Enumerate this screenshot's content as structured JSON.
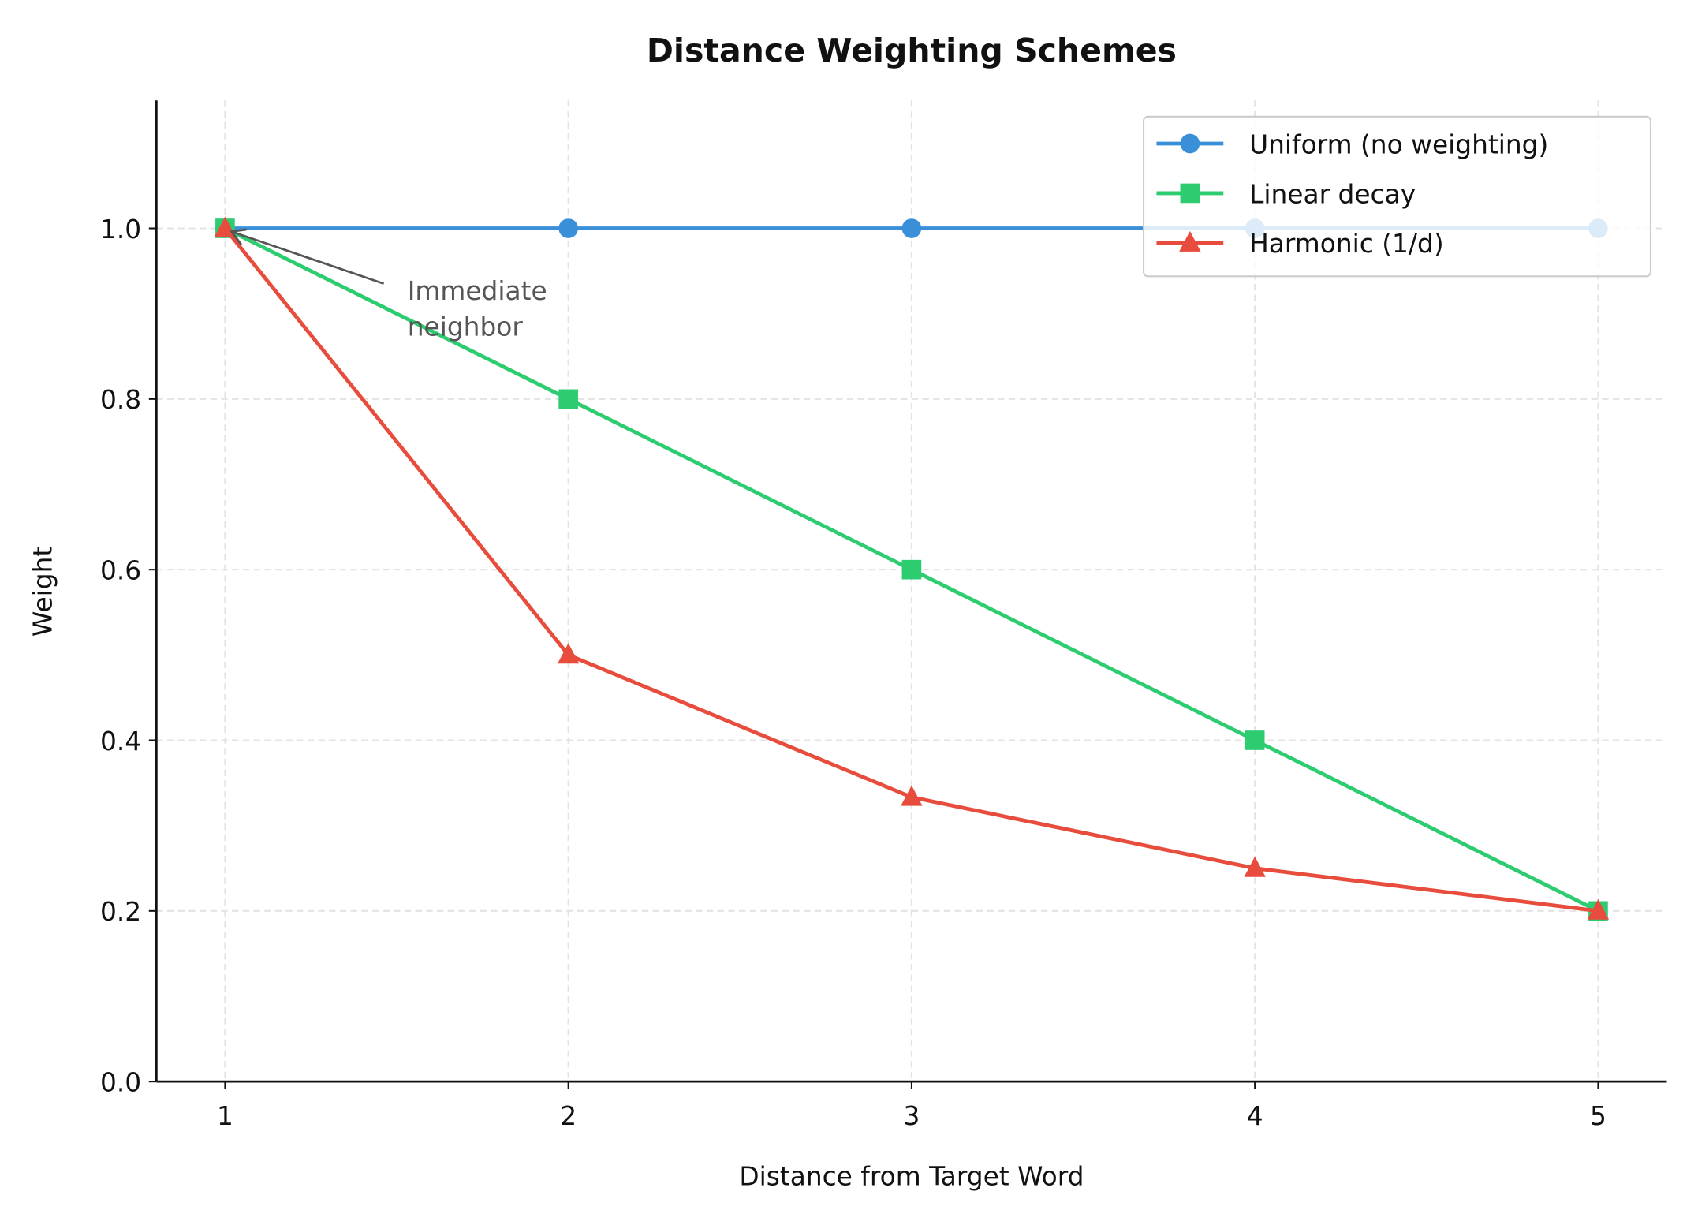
{
  "chart_data": {
    "type": "line",
    "title": "Distance Weighting Schemes",
    "xlabel": "Distance from Target Word",
    "ylabel": "Weight",
    "x": [
      1,
      2,
      3,
      4,
      5
    ],
    "xlim": [
      0.8,
      5.2
    ],
    "ylim": [
      0,
      1.15
    ],
    "xticks": [
      "1",
      "2",
      "3",
      "4",
      "5"
    ],
    "yticks": [
      "0.0",
      "0.2",
      "0.4",
      "0.6",
      "0.8",
      "1.0"
    ],
    "grid": true,
    "legend_position": "top-right",
    "series": [
      {
        "name": "Uniform (no weighting)",
        "values": [
          1,
          1,
          1,
          1,
          1
        ],
        "color": "#3a8fd9",
        "marker": "circle"
      },
      {
        "name": "Linear decay",
        "values": [
          1.0,
          0.8,
          0.6,
          0.4,
          0.2
        ],
        "color": "#2ecc71",
        "marker": "square"
      },
      {
        "name": "Harmonic (1/d)",
        "values": [
          1.0,
          0.5,
          0.3333,
          0.25,
          0.2
        ],
        "color": "#e74c3c",
        "marker": "triangle"
      }
    ],
    "annotations": [
      {
        "text_lines": [
          "Immediate",
          "neighbor"
        ],
        "point": [
          1,
          1.0
        ],
        "text_at": [
          1.5,
          0.92
        ]
      }
    ]
  }
}
